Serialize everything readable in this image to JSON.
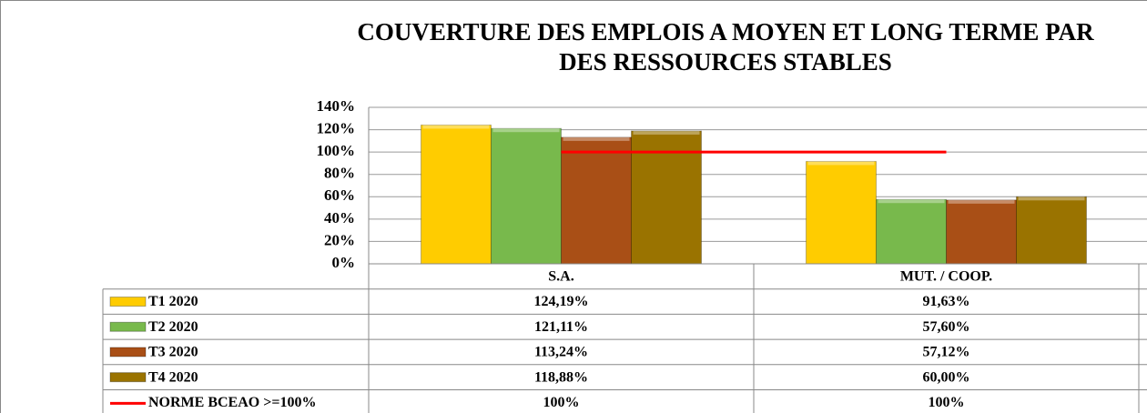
{
  "chart_data": {
    "type": "bar",
    "title": [
      "COUVERTURE  DES EMPLOIS A MOYEN ET LONG TERME  PAR",
      "DES RESSOURCES STABLES"
    ],
    "categories": [
      "S.A.",
      "MUT. / COOP."
    ],
    "series": [
      {
        "name": "T1 2020",
        "color": "#ffcc00",
        "values": [
          124.19,
          91.63
        ],
        "value_labels": [
          "124,19%",
          "91,63%"
        ]
      },
      {
        "name": "T2 2020",
        "color": "#78b94c",
        "values": [
          121.11,
          57.6
        ],
        "value_labels": [
          "121,11%",
          "57,60%"
        ]
      },
      {
        "name": "T3 2020",
        "color": "#a94f16",
        "values": [
          113.24,
          57.12
        ],
        "value_labels": [
          "113,24%",
          "57,12%"
        ]
      },
      {
        "name": "T4 2020",
        "color": "#9a7300",
        "values": [
          118.88,
          60
        ],
        "value_labels": [
          "118,88%",
          "60,00%"
        ]
      },
      {
        "name": "NORME BCEAO >=100%",
        "color": "#ff0000",
        "type": "line",
        "values": [
          100,
          100
        ],
        "value_labels": [
          "100%",
          "100%"
        ]
      }
    ],
    "ylim": [
      0,
      140
    ],
    "yticks": [
      {
        "value": 0,
        "label": "0%"
      },
      {
        "value": 20,
        "label": "20%"
      },
      {
        "value": 40,
        "label": "40%"
      },
      {
        "value": 60,
        "label": "60%"
      },
      {
        "value": 80,
        "label": "80%"
      },
      {
        "value": 100,
        "label": "100%"
      },
      {
        "value": 120,
        "label": "120%"
      },
      {
        "value": 140,
        "label": "140%"
      }
    ],
    "grid": true
  }
}
